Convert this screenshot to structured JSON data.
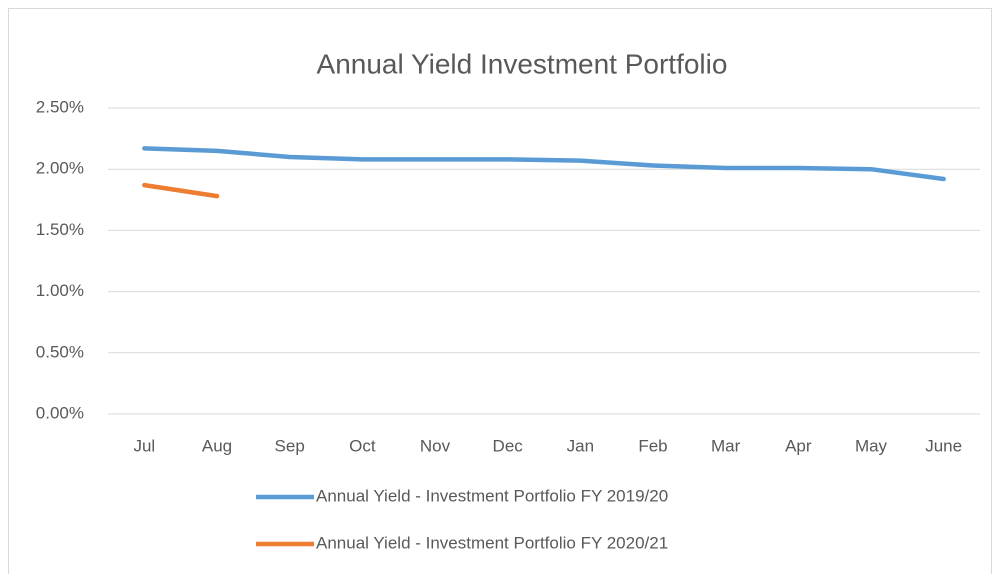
{
  "chart_data": {
    "type": "line",
    "title": "Annual Yield Investment Portfolio",
    "categories": [
      "Jul",
      "Aug",
      "Sep",
      "Oct",
      "Nov",
      "Dec",
      "Jan",
      "Feb",
      "Mar",
      "Apr",
      "May",
      "June"
    ],
    "series": [
      {
        "name": "Annual Yield - Investment Portfolio FY 2019/20",
        "color": "#5b9bd5",
        "values": [
          2.17,
          2.15,
          2.1,
          2.08,
          2.08,
          2.08,
          2.07,
          2.03,
          2.01,
          2.01,
          2.0,
          1.92
        ]
      },
      {
        "name": "Annual Yield - Investment Portfolio FY 2020/21",
        "color": "#ed7d31",
        "values": [
          1.87,
          1.78,
          null,
          null,
          null,
          null,
          null,
          null,
          null,
          null,
          null,
          null
        ]
      }
    ],
    "ylim": [
      0,
      2.5
    ],
    "yticks": [
      {
        "value": 0,
        "label": "0.00%"
      },
      {
        "value": 0.5,
        "label": "0.50%"
      },
      {
        "value": 1,
        "label": "1.00%"
      },
      {
        "value": 1.5,
        "label": "1.50%"
      },
      {
        "value": 2,
        "label": "2.00%"
      },
      {
        "value": 2.5,
        "label": "2.50%"
      }
    ],
    "grid": true,
    "legend": "bottom"
  }
}
